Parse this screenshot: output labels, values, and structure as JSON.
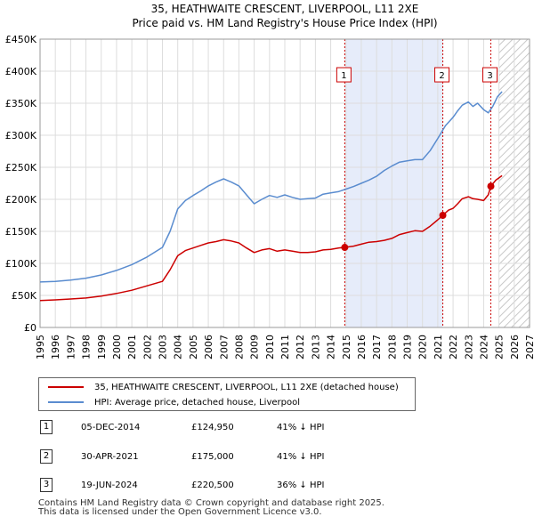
{
  "chart_data": {
    "type": "line",
    "title": "35, HEATHWAITE CRESCENT, LIVERPOOL, L11 2XE",
    "subtitle": "Price paid vs. HM Land Registry's House Price Index (HPI)",
    "xlim": [
      1995,
      2027
    ],
    "ylim": [
      0,
      450000
    ],
    "y_ticks": [
      0,
      50000,
      100000,
      150000,
      200000,
      250000,
      300000,
      350000,
      400000,
      450000
    ],
    "y_tick_labels": [
      "£0",
      "£50K",
      "£100K",
      "£150K",
      "£200K",
      "£250K",
      "£300K",
      "£350K",
      "£400K",
      "£450K"
    ],
    "x_ticks": [
      1995,
      1996,
      1997,
      1998,
      1999,
      2000,
      2001,
      2002,
      2003,
      2004,
      2005,
      2006,
      2007,
      2008,
      2009,
      2010,
      2011,
      2012,
      2013,
      2014,
      2015,
      2016,
      2017,
      2018,
      2019,
      2020,
      2021,
      2022,
      2023,
      2024,
      2025,
      2026,
      2027
    ],
    "x_tick_labels": [
      "1995",
      "1996",
      "1997",
      "1998",
      "1999",
      "2000",
      "2001",
      "2002",
      "2003",
      "2004",
      "2005",
      "2006",
      "2007",
      "2008",
      "2009",
      "2010",
      "2011",
      "2012",
      "2013",
      "2014",
      "2015",
      "2016",
      "2017",
      "2018",
      "2019",
      "2020",
      "2021",
      "2022",
      "2023",
      "2024",
      "2025",
      "2026",
      "2027"
    ],
    "grid": true,
    "shaded_ranges": [
      [
        2014.92,
        2021.33
      ]
    ],
    "hatched_from": 2025.0,
    "sale_vlines": [
      2014.92,
      2021.33,
      2024.47
    ],
    "series": [
      {
        "name": "35, HEATHWAITE CRESCENT, LIVERPOOL, L11 2XE (detached house)",
        "color": "#cc0000",
        "x": [
          1995.0,
          1996.0,
          1997.0,
          1998.0,
          1999.0,
          2000.0,
          2001.0,
          2002.0,
          2003.0,
          2003.5,
          2004.0,
          2004.5,
          2005.0,
          2005.5,
          2006.0,
          2006.5,
          2007.0,
          2007.5,
          2008.0,
          2008.5,
          2009.0,
          2009.5,
          2010.0,
          2010.5,
          2011.0,
          2011.5,
          2012.0,
          2012.5,
          2013.0,
          2013.5,
          2014.0,
          2014.5,
          2014.92,
          2015.5,
          2016.0,
          2016.5,
          2017.0,
          2017.5,
          2018.0,
          2018.5,
          2019.0,
          2019.5,
          2020.0,
          2020.5,
          2021.0,
          2021.33,
          2021.7,
          2022.0,
          2022.3,
          2022.6,
          2023.0,
          2023.3,
          2023.6,
          2024.0,
          2024.3,
          2024.47,
          2024.8,
          2025.2
        ],
        "y": [
          42000,
          43000,
          44500,
          46000,
          49000,
          53000,
          58000,
          65000,
          72000,
          90000,
          112000,
          120000,
          124000,
          128000,
          132000,
          134000,
          137000,
          135000,
          132000,
          124000,
          117000,
          121000,
          123000,
          119000,
          121000,
          119000,
          117000,
          117000,
          118000,
          121000,
          122000,
          124000,
          124950,
          127000,
          130000,
          133000,
          134000,
          136000,
          139000,
          145000,
          148000,
          151000,
          150000,
          158000,
          168000,
          175000,
          183000,
          186000,
          193000,
          201000,
          204000,
          201000,
          200000,
          198000,
          207000,
          220500,
          230000,
          237000
        ]
      },
      {
        "name": "HPI: Average price, detached house, Liverpool",
        "color": "#5a8ccf",
        "x": [
          1995.0,
          1996.0,
          1997.0,
          1998.0,
          1999.0,
          2000.0,
          2001.0,
          2002.0,
          2003.0,
          2003.5,
          2004.0,
          2004.5,
          2005.0,
          2005.5,
          2006.0,
          2006.5,
          2007.0,
          2007.5,
          2008.0,
          2008.5,
          2009.0,
          2009.5,
          2010.0,
          2010.5,
          2011.0,
          2011.5,
          2012.0,
          2012.5,
          2013.0,
          2013.5,
          2014.0,
          2014.5,
          2015.0,
          2015.5,
          2016.0,
          2016.5,
          2017.0,
          2017.5,
          2018.0,
          2018.5,
          2019.0,
          2019.5,
          2020.0,
          2020.5,
          2021.0,
          2021.5,
          2022.0,
          2022.3,
          2022.6,
          2023.0,
          2023.3,
          2023.6,
          2024.0,
          2024.3,
          2024.6,
          2024.9,
          2025.2
        ],
        "y": [
          71000,
          72000,
          74000,
          77000,
          82000,
          89000,
          98000,
          110000,
          125000,
          150000,
          185000,
          198000,
          206000,
          213000,
          221000,
          227000,
          232000,
          227000,
          221000,
          207000,
          193000,
          200000,
          206000,
          203000,
          207000,
          203000,
          200000,
          201000,
          202000,
          208000,
          210000,
          212000,
          216000,
          220000,
          225000,
          230000,
          236000,
          245000,
          252000,
          258000,
          260000,
          262000,
          262000,
          276000,
          295000,
          315000,
          328000,
          338000,
          347000,
          352000,
          345000,
          350000,
          340000,
          335000,
          345000,
          360000,
          368000
        ]
      }
    ],
    "markers": [
      {
        "label": "1",
        "x": 2014.92,
        "y": 124950
      },
      {
        "label": "2",
        "x": 2021.33,
        "y": 175000
      },
      {
        "label": "3",
        "x": 2024.47,
        "y": 220500
      }
    ],
    "marker_boxes": [
      {
        "label": "1",
        "x": 2014.92,
        "y": 393000
      },
      {
        "label": "2",
        "x": 2021.33,
        "y": 393000
      },
      {
        "label": "3",
        "x": 2024.47,
        "y": 393000
      }
    ]
  },
  "legend": {
    "series1_label": "35, HEATHWAITE CRESCENT, LIVERPOOL, L11 2XE (detached house)",
    "series2_label": "HPI: Average price, detached house, Liverpool",
    "series1_color": "#cc0000",
    "series2_color": "#5a8ccf"
  },
  "transactions": [
    {
      "num": "1",
      "date": "05-DEC-2014",
      "price": "£124,950",
      "hpi": "41% ↓ HPI"
    },
    {
      "num": "2",
      "date": "30-APR-2021",
      "price": "£175,000",
      "hpi": "41% ↓ HPI"
    },
    {
      "num": "3",
      "date": "19-JUN-2024",
      "price": "£220,500",
      "hpi": "36% ↓ HPI"
    }
  ],
  "footer": {
    "line1": "Contains HM Land Registry data © Crown copyright and database right 2025.",
    "line2": "This data is licensed under the Open Government Licence v3.0."
  }
}
